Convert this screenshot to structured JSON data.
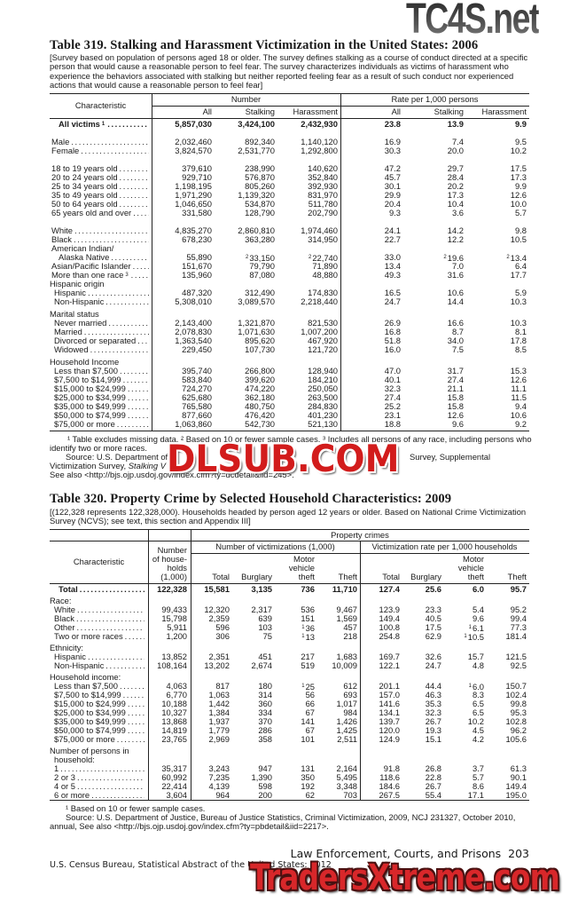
{
  "table319": {
    "title": "Table 319. Stalking and Harassment Victimization in the United States: 2006",
    "headnote": "[Survey based on population of persons aged 18 or older. The survey defines stalking as a course of conduct directed at a specific person that would cause a reasonable person to feel fear. The survey characterizes individuals as victims of harassment who experience the behaviors associated with stalking but neither reported feeling fear as a result of such conduct nor experienced actions that would cause a reasonable person to feel fear]",
    "header": {
      "characteristic": "Characteristic",
      "number_group": "Number",
      "rate_group": "Rate per 1,000 persons",
      "columns": [
        "All",
        "Stalking",
        "Harassment",
        "All",
        "Stalking",
        "Harassment"
      ]
    },
    "groups": [
      {
        "rows": [
          {
            "label": "All victims",
            "sup": "1",
            "bold": true,
            "indent": 3,
            "values": [
              "5,857,030",
              "3,424,100",
              "2,432,930",
              "23.8",
              "13.9",
              "9.9"
            ]
          }
        ]
      },
      {
        "rows": [
          {
            "label": "Male",
            "indent": 1,
            "values": [
              "2,032,460",
              "892,340",
              "1,140,120",
              "16.9",
              "7.4",
              "9.5"
            ]
          },
          {
            "label": "Female",
            "indent": 1,
            "values": [
              "3,824,570",
              "2,531,770",
              "1,292,800",
              "30.3",
              "20.0",
              "10.2"
            ]
          }
        ]
      },
      {
        "rows": [
          {
            "label": "18 to 19 years old",
            "indent": 1,
            "values": [
              "379,610",
              "238,990",
              "140,620",
              "47.2",
              "29.7",
              "17.5"
            ]
          },
          {
            "label": "20 to 24 years old",
            "indent": 1,
            "values": [
              "929,710",
              "576,870",
              "352,840",
              "45.7",
              "28.4",
              "17.3"
            ]
          },
          {
            "label": "25 to 34 years old",
            "indent": 1,
            "values": [
              "1,198,195",
              "805,260",
              "392,930",
              "30.1",
              "20.2",
              "9.9"
            ]
          },
          {
            "label": "35 to 49 years old",
            "indent": 1,
            "values": [
              "1,971,290",
              "1,139,320",
              "831,970",
              "29.9",
              "17.3",
              "12.6"
            ]
          },
          {
            "label": "50 to 64 years old",
            "indent": 1,
            "values": [
              "1,046,650",
              "534,870",
              "511,780",
              "20.4",
              "10.4",
              "10.0"
            ]
          },
          {
            "label": "65 years old and over",
            "indent": 1,
            "values": [
              "331,580",
              "128,790",
              "202,790",
              "9.3",
              "3.6",
              "5.7"
            ]
          }
        ]
      },
      {
        "rows": [
          {
            "label": "White",
            "indent": 1,
            "values": [
              "4,835,270",
              "2,860,810",
              "1,974,460",
              "24.1",
              "14.2",
              "9.8"
            ]
          },
          {
            "label": "Black",
            "indent": 1,
            "values": [
              "678,230",
              "363,280",
              "314,950",
              "22.7",
              "12.2",
              "10.5"
            ]
          },
          {
            "label": "American Indian/",
            "indent": 1,
            "subheading": true
          },
          {
            "label": "Alaska Native",
            "indent": 3,
            "values": [
              "55,890",
              {
                "v": "33,150",
                "sup": "2"
              },
              {
                "v": "22,740",
                "sup": "2"
              },
              "33.0",
              {
                "v": "19.6",
                "sup": "2"
              },
              {
                "v": "13.4",
                "sup": "2"
              }
            ]
          },
          {
            "label": "Asian/Pacific Islander",
            "indent": 1,
            "values": [
              "151,670",
              "79,790",
              "71,890",
              "13.4",
              "7.0",
              "6.4"
            ]
          },
          {
            "label": "More than one race",
            "sup": "3",
            "indent": 1,
            "values": [
              "135,960",
              "87,080",
              "48,880",
              "49.3",
              "31.6",
              "17.7"
            ]
          },
          {
            "label": "Hispanic origin",
            "indent": 0,
            "subheading": true
          },
          {
            "label": "Hispanic",
            "indent": 2,
            "values": [
              "487,320",
              "312,490",
              "174,830",
              "16.5",
              "10.6",
              "5.9"
            ]
          },
          {
            "label": "Non-Hispanic",
            "indent": 2,
            "values": [
              "5,308,010",
              "3,089,570",
              "2,218,440",
              "24.7",
              "14.4",
              "10.3"
            ]
          }
        ]
      },
      {
        "heading": [
          "Marital status"
        ],
        "rows": [
          {
            "label": "Never married",
            "indent": 2,
            "values": [
              "2,143,400",
              "1,321,870",
              "821,530",
              "26.9",
              "16.6",
              "10.3"
            ]
          },
          {
            "label": "Married",
            "indent": 2,
            "values": [
              "2,078,830",
              "1,071,630",
              "1,007,200",
              "16.8",
              "8.7",
              "8.1"
            ]
          },
          {
            "label": "Divorced or separated",
            "indent": 2,
            "values": [
              "1,363,540",
              "895,620",
              "467,920",
              "51.8",
              "34.0",
              "17.8"
            ]
          },
          {
            "label": "Widowed",
            "indent": 2,
            "values": [
              "229,450",
              "107,730",
              "121,720",
              "16.0",
              "7.5",
              "8.5"
            ]
          }
        ]
      },
      {
        "heading": [
          "Household Income"
        ],
        "rows": [
          {
            "label": "Less than $7,500",
            "indent": 2,
            "values": [
              "395,740",
              "266,800",
              "128,940",
              "47.0",
              "31.7",
              "15.3"
            ]
          },
          {
            "label": "$7,500 to $14,999",
            "indent": 2,
            "values": [
              "583,840",
              "399,620",
              "184,210",
              "40.1",
              "27.4",
              "12.6"
            ]
          },
          {
            "label": "$15,000 to $24,999",
            "indent": 2,
            "values": [
              "724,270",
              "474,220",
              "250,050",
              "32.3",
              "21.1",
              "11.1"
            ]
          },
          {
            "label": "$25,000 to $34,999",
            "indent": 2,
            "values": [
              "625,680",
              "362,180",
              "263,500",
              "27.4",
              "15.8",
              "11.5"
            ]
          },
          {
            "label": "$35,000 to $49,999",
            "indent": 2,
            "values": [
              "765,580",
              "480,750",
              "284,830",
              "25.2",
              "15.8",
              "9.4"
            ]
          },
          {
            "label": "$50,000 to $74,999",
            "indent": 2,
            "values": [
              "877,660",
              "476,420",
              "401,230",
              "23.1",
              "12.6",
              "10.6"
            ]
          },
          {
            "label": "$75,000 or more",
            "indent": 2,
            "values": [
              "1,063,860",
              "542,730",
              "521,130",
              "18.8",
              "9.6",
              "9.2"
            ]
          }
        ]
      }
    ],
    "footnotes": {
      "line1": "¹ Table excludes missing data. ² Based on 10 or fewer sample cases. ³ Includes all persons of any race, including persons who",
      "line2": "identify two or more races.",
      "source_a": "Source: U.S. Department of",
      "source_b": "Survey, Supplemental",
      "source_c": "Victimization Survey, ",
      "source_c_italic": "Stalking V",
      "see_also": "See also <http://bjs.ojp.usdoj.gov/index.cfm?ty=dcdetail&iid=245>."
    }
  },
  "table320": {
    "title": "Table 320. Property Crime by Selected Household Characteristics: 2009",
    "headnote": "[(122,328 represents 122,328,000). Households headed by person aged 12 years or older. Based on National Crime Victimization Survey (NCVS); see text, this section and Appendix III]",
    "header": {
      "characteristic": "Characteristic",
      "households": [
        "Number",
        "of house-",
        "holds",
        "(1,000)"
      ],
      "property_crimes": "Property crimes",
      "victimizations_group": "Number of victimizations (1,000)",
      "rate_group": "Victimization rate per 1,000 households",
      "columns": [
        "Total",
        "Burglary",
        "Motor vehicle theft",
        "Theft",
        "Total",
        "Burglary",
        "Motor vehicle theft",
        "Theft"
      ],
      "motor_lines": [
        "Motor",
        "vehicle",
        "theft"
      ]
    },
    "groups": [
      {
        "rows": [
          {
            "label": "Total",
            "bold": true,
            "indent": 3,
            "values": [
              "122,328",
              "15,581",
              "3,135",
              "736",
              "11,710",
              "127.4",
              "25.6",
              "6.0",
              "95.7"
            ]
          }
        ]
      },
      {
        "heading": [
          "Race:"
        ],
        "rows": [
          {
            "label": "White",
            "indent": 2,
            "values": [
              "99,433",
              "12,320",
              "2,317",
              "536",
              "9,467",
              "123.9",
              "23.3",
              "5.4",
              "95.2"
            ]
          },
          {
            "label": "Black",
            "indent": 2,
            "values": [
              "15,798",
              "2,359",
              "639",
              "151",
              "1,569",
              "149.4",
              "40.5",
              "9.6",
              "99.4"
            ]
          },
          {
            "label": "Other",
            "indent": 2,
            "values": [
              "5,911",
              "596",
              "103",
              {
                "v": "36",
                "sup": "1"
              },
              "457",
              "100.8",
              "17.5",
              {
                "v": "6.1",
                "sup": "1"
              },
              "77.3"
            ]
          },
          {
            "label": "Two or more races",
            "indent": 2,
            "values": [
              "1,200",
              "306",
              "75",
              {
                "v": "13",
                "sup": "1"
              },
              "218",
              "254.8",
              "62.9",
              {
                "v": "10.5",
                "sup": "1"
              },
              "181.4"
            ]
          }
        ]
      },
      {
        "heading": [
          "Ethnicity:"
        ],
        "rows": [
          {
            "label": "Hispanic",
            "indent": 2,
            "values": [
              "13,852",
              "2,351",
              "451",
              "217",
              "1,683",
              "169.7",
              "32.6",
              "15.7",
              "121.5"
            ]
          },
          {
            "label": "Non-Hispanic",
            "indent": 2,
            "values": [
              "108,164",
              "13,202",
              "2,674",
              "519",
              "10,009",
              "122.1",
              "24.7",
              "4.8",
              "92.5"
            ]
          }
        ]
      },
      {
        "heading": [
          "Household income:"
        ],
        "rows": [
          {
            "label": "Less than $7,500",
            "indent": 2,
            "values": [
              "4,063",
              "817",
              "180",
              {
                "v": "25",
                "sup": "1"
              },
              "612",
              "201.1",
              "44.4",
              {
                "v": "6.0",
                "sup": "1"
              },
              "150.7"
            ]
          },
          {
            "label": "$7,500 to $14,999",
            "indent": 2,
            "values": [
              "6,770",
              "1,063",
              "314",
              "56",
              "693",
              "157.0",
              "46.3",
              "8.3",
              "102.4"
            ]
          },
          {
            "label": "$15,000 to $24,999",
            "indent": 2,
            "values": [
              "10,188",
              "1,442",
              "360",
              "66",
              "1,017",
              "141.6",
              "35.3",
              "6.5",
              "99.8"
            ]
          },
          {
            "label": "$25,000 to $34,999",
            "indent": 2,
            "values": [
              "10,327",
              "1,384",
              "334",
              "67",
              "984",
              "134.1",
              "32.3",
              "6.5",
              "95.3"
            ]
          },
          {
            "label": "$35,000 to $49,999",
            "indent": 2,
            "values": [
              "13,868",
              "1,937",
              "370",
              "141",
              "1,426",
              "139.7",
              "26.7",
              "10.2",
              "102.8"
            ]
          },
          {
            "label": "$50,000 to $74,999",
            "indent": 2,
            "values": [
              "14,819",
              "1,779",
              "286",
              "67",
              "1,425",
              "120.0",
              "19.3",
              "4.5",
              "96.2"
            ]
          },
          {
            "label": "$75,000 or more",
            "indent": 2,
            "values": [
              "23,765",
              "2,969",
              "358",
              "101",
              "2,511",
              "124.9",
              "15.1",
              "4.2",
              "105.6"
            ]
          }
        ]
      },
      {
        "heading": [
          "Number of persons in",
          "household:"
        ],
        "rows": [
          {
            "label": "1",
            "indent": 2,
            "values": [
              "35,317",
              "3,243",
              "947",
              "131",
              "2,164",
              "91.8",
              "26.8",
              "3.7",
              "61.3"
            ]
          },
          {
            "label": "2 or 3",
            "indent": 2,
            "values": [
              "60,992",
              "7,235",
              "1,390",
              "350",
              "5,495",
              "118.6",
              "22.8",
              "5.7",
              "90.1"
            ]
          },
          {
            "label": "4 or 5",
            "indent": 2,
            "values": [
              "22,414",
              "4,139",
              "598",
              "192",
              "3,348",
              "184.6",
              "26.7",
              "8.6",
              "149.4"
            ]
          },
          {
            "label": "6 or more",
            "indent": 2,
            "values": [
              "3,604",
              "964",
              "200",
              "62",
              "703",
              "267.5",
              "55.4",
              "17.1",
              "195.0"
            ]
          }
        ]
      }
    ],
    "footnotes": {
      "line1": "¹ Based on 10 or fewer sample cases.",
      "source": "Source: U.S. Department of Justice, Bureau of Justice Statistics, Criminal Victimization, 2009, NCJ 231327, October 2010,",
      "source2": "annual, See also <http://bjs.ojp.usdoj.gov/index.cfm?ty=pbdetail&iid=2217>."
    }
  },
  "footer": {
    "section": "Law Enforcement, Courts, and Prisons",
    "page_number": "203",
    "publication": "U.S. Census Bureau, Statistical Abstract of the United States: 2012"
  },
  "watermarks": {
    "top": "TC4S.net",
    "middle": "DLSUB.COM",
    "bottom": "TradersXtreme.com"
  }
}
